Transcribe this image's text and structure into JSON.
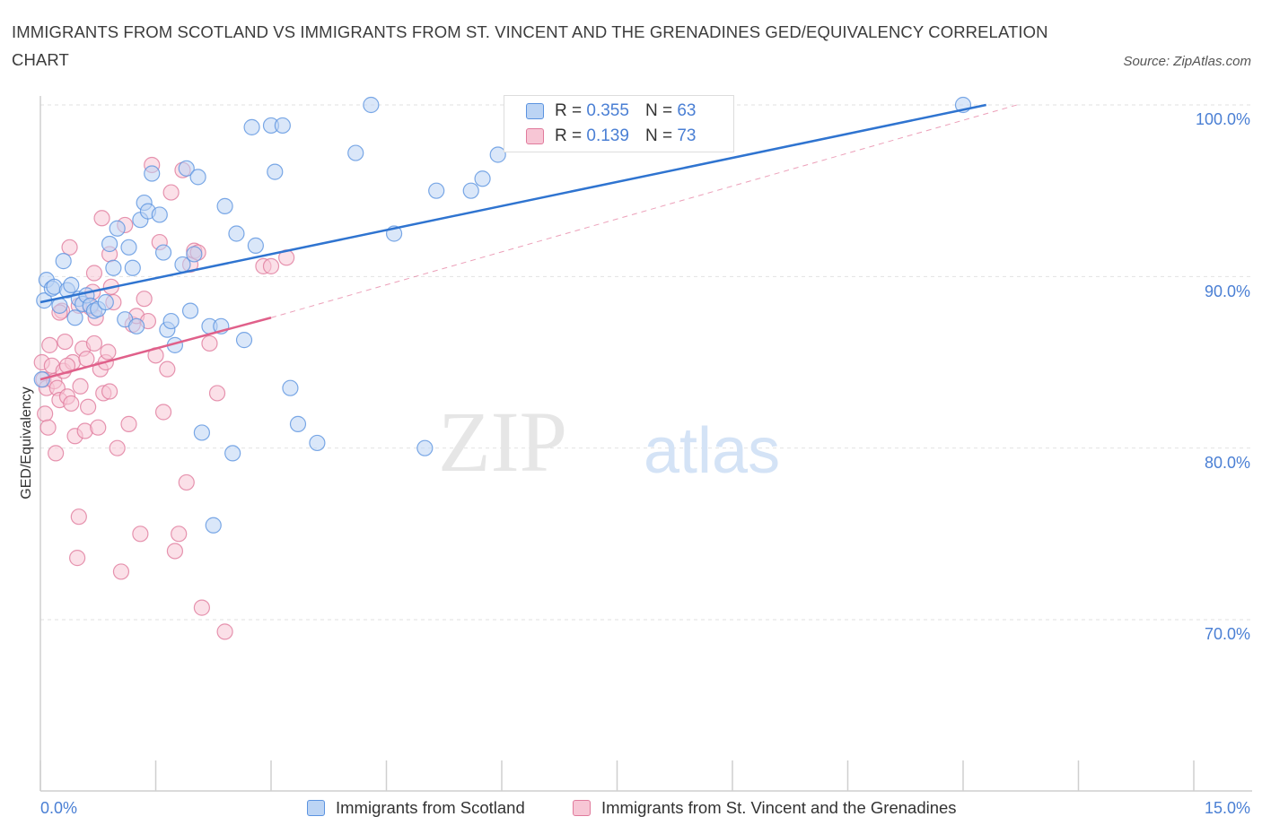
{
  "header": {
    "title": "IMMIGRANTS FROM SCOTLAND VS IMMIGRANTS FROM ST. VINCENT AND THE GRENADINES GED/EQUIVALENCY CORRELATION CHART",
    "source": "Source: ZipAtlas.com"
  },
  "colors": {
    "blue": "#5b93e0",
    "blue_fill": "#bcd4f4",
    "blue_line": "#2f74d0",
    "pink": "#e07a9c",
    "pink_fill": "#f7c6d5",
    "pink_line": "#e0608a",
    "tick_text": "#4a7fd4"
  },
  "legend": {
    "rows": [
      {
        "r_label": "R =",
        "r_value": "0.355",
        "n_label": "N =",
        "n_value": "63"
      },
      {
        "r_label": "R =",
        "r_value": "0.139",
        "n_label": "N =",
        "n_value": "73"
      }
    ]
  },
  "watermark": {
    "zip": "ZIP",
    "atlas": "atlas"
  },
  "chart_data": {
    "type": "scatter",
    "title": "IMMIGRANTS FROM SCOTLAND VS IMMIGRANTS FROM ST. VINCENT AND THE GRENADINES GED/EQUIVALENCY CORRELATION CHART",
    "xlabel": "",
    "ylabel": "GED/Equivalency",
    "xlim": [
      0,
      15
    ],
    "ylim": [
      60,
      100
    ],
    "x_tick_labels": [
      "0.0%",
      "15.0%"
    ],
    "y_ticks": [
      70,
      80,
      90,
      100
    ],
    "y_tick_labels": [
      "70.0%",
      "80.0%",
      "90.0%",
      "100.0%"
    ],
    "grid": true,
    "legend_position": "top-center",
    "series": [
      {
        "name": "Immigrants from Scotland",
        "color": "#5b93e0",
        "points": [
          [
            0.05,
            88.6
          ],
          [
            0.08,
            89.8
          ],
          [
            0.15,
            89.3
          ],
          [
            0.18,
            89.4
          ],
          [
            0.25,
            88.3
          ],
          [
            0.3,
            90.9
          ],
          [
            0.35,
            89.2
          ],
          [
            0.4,
            89.5
          ],
          [
            0.45,
            87.6
          ],
          [
            0.5,
            88.7
          ],
          [
            0.55,
            88.4
          ],
          [
            0.6,
            88.9
          ],
          [
            0.65,
            88.3
          ],
          [
            0.7,
            88.0
          ],
          [
            0.75,
            88.1
          ],
          [
            0.85,
            88.5
          ],
          [
            0.9,
            91.9
          ],
          [
            0.95,
            90.5
          ],
          [
            1.0,
            92.8
          ],
          [
            1.1,
            87.5
          ],
          [
            1.15,
            91.7
          ],
          [
            1.2,
            90.5
          ],
          [
            1.25,
            87.1
          ],
          [
            1.3,
            93.3
          ],
          [
            1.35,
            94.3
          ],
          [
            1.4,
            93.8
          ],
          [
            1.45,
            96.0
          ],
          [
            1.55,
            93.6
          ],
          [
            1.6,
            91.4
          ],
          [
            1.65,
            86.9
          ],
          [
            1.7,
            87.4
          ],
          [
            1.75,
            86.0
          ],
          [
            1.85,
            90.7
          ],
          [
            1.9,
            96.3
          ],
          [
            1.95,
            88.0
          ],
          [
            2.0,
            91.3
          ],
          [
            2.05,
            95.8
          ],
          [
            2.1,
            80.9
          ],
          [
            2.2,
            87.1
          ],
          [
            2.25,
            75.5
          ],
          [
            2.35,
            87.1
          ],
          [
            2.4,
            94.1
          ],
          [
            2.5,
            79.7
          ],
          [
            2.55,
            92.5
          ],
          [
            2.65,
            86.3
          ],
          [
            2.75,
            98.7
          ],
          [
            2.8,
            91.8
          ],
          [
            3.0,
            98.8
          ],
          [
            3.05,
            96.1
          ],
          [
            3.15,
            98.8
          ],
          [
            3.25,
            83.5
          ],
          [
            3.35,
            81.4
          ],
          [
            3.6,
            80.3
          ],
          [
            4.1,
            97.2
          ],
          [
            4.3,
            100.0
          ],
          [
            4.6,
            92.5
          ],
          [
            5.0,
            80.0
          ],
          [
            5.15,
            95.0
          ],
          [
            5.6,
            95.0
          ],
          [
            5.75,
            95.7
          ],
          [
            5.95,
            97.1
          ],
          [
            12.0,
            100.0
          ],
          [
            0.02,
            84.0
          ]
        ],
        "trend": [
          [
            0.0,
            88.5
          ],
          [
            12.3,
            100.0
          ]
        ]
      },
      {
        "name": "Immigrants from St. Vincent and the Grenadines",
        "color": "#e07a9c",
        "points": [
          [
            0.02,
            85.0
          ],
          [
            0.04,
            84.0
          ],
          [
            0.06,
            82.0
          ],
          [
            0.08,
            83.5
          ],
          [
            0.1,
            81.2
          ],
          [
            0.12,
            86.0
          ],
          [
            0.15,
            84.8
          ],
          [
            0.18,
            83.9
          ],
          [
            0.2,
            79.7
          ],
          [
            0.22,
            83.5
          ],
          [
            0.25,
            82.8
          ],
          [
            0.28,
            88.0
          ],
          [
            0.3,
            84.5
          ],
          [
            0.32,
            86.2
          ],
          [
            0.35,
            83.0
          ],
          [
            0.38,
            91.7
          ],
          [
            0.4,
            82.6
          ],
          [
            0.42,
            85.0
          ],
          [
            0.45,
            80.7
          ],
          [
            0.48,
            73.6
          ],
          [
            0.5,
            76.0
          ],
          [
            0.52,
            83.6
          ],
          [
            0.55,
            85.8
          ],
          [
            0.58,
            81.0
          ],
          [
            0.6,
            85.2
          ],
          [
            0.62,
            82.4
          ],
          [
            0.65,
            88.2
          ],
          [
            0.68,
            89.1
          ],
          [
            0.7,
            86.1
          ],
          [
            0.72,
            87.6
          ],
          [
            0.75,
            81.2
          ],
          [
            0.78,
            84.6
          ],
          [
            0.8,
            93.4
          ],
          [
            0.82,
            83.2
          ],
          [
            0.85,
            85.0
          ],
          [
            0.88,
            85.6
          ],
          [
            0.9,
            83.3
          ],
          [
            0.92,
            89.4
          ],
          [
            0.95,
            88.5
          ],
          [
            1.0,
            80.0
          ],
          [
            1.05,
            72.8
          ],
          [
            1.1,
            93.0
          ],
          [
            1.15,
            81.4
          ],
          [
            1.2,
            87.2
          ],
          [
            1.25,
            87.7
          ],
          [
            1.3,
            75.0
          ],
          [
            1.35,
            88.7
          ],
          [
            1.4,
            87.4
          ],
          [
            1.45,
            96.5
          ],
          [
            1.5,
            85.4
          ],
          [
            1.55,
            92.0
          ],
          [
            1.6,
            82.1
          ],
          [
            1.65,
            84.6
          ],
          [
            1.7,
            94.9
          ],
          [
            1.75,
            74.0
          ],
          [
            1.8,
            75.0
          ],
          [
            1.85,
            96.2
          ],
          [
            1.9,
            78.0
          ],
          [
            1.95,
            90.7
          ],
          [
            2.0,
            91.5
          ],
          [
            2.05,
            91.4
          ],
          [
            2.1,
            70.7
          ],
          [
            2.2,
            86.1
          ],
          [
            2.3,
            83.2
          ],
          [
            2.4,
            69.3
          ],
          [
            2.9,
            90.6
          ],
          [
            3.0,
            90.6
          ],
          [
            3.2,
            91.1
          ],
          [
            0.9,
            91.3
          ],
          [
            0.7,
            90.2
          ],
          [
            0.5,
            88.3
          ],
          [
            0.35,
            84.8
          ],
          [
            0.25,
            87.9
          ]
        ],
        "trend_solid": [
          [
            0.0,
            84.0
          ],
          [
            3.0,
            87.6
          ]
        ],
        "trend_dashed": [
          [
            3.0,
            87.6
          ],
          [
            12.7,
            100.0
          ]
        ]
      }
    ]
  },
  "bottom_legend": [
    {
      "label": "Immigrants from Scotland"
    },
    {
      "label": "Immigrants from St. Vincent and the Grenadines"
    }
  ]
}
